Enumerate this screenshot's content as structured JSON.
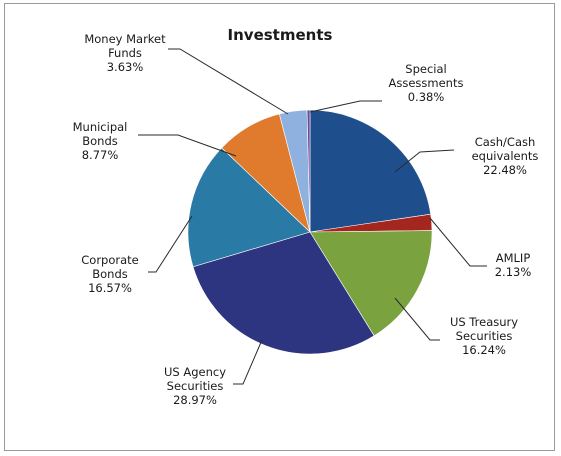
{
  "chart_data": {
    "type": "pie",
    "title": "Investments",
    "slices": [
      {
        "name_lines": [
          "Cash/Cash",
          "equivalents"
        ],
        "pct_label": "22.48%",
        "value": 22.48,
        "color": "#1f4e8c"
      },
      {
        "name_lines": [
          "AMLIP"
        ],
        "pct_label": "2.13%",
        "value": 2.13,
        "color": "#a3261f"
      },
      {
        "name_lines": [
          "US Treasury",
          "Securities"
        ],
        "pct_label": "16.24%",
        "value": 16.24,
        "color": "#7aa33f"
      },
      {
        "name_lines": [
          "US Agency",
          "Securities"
        ],
        "pct_label": "28.97%",
        "value": 28.97,
        "color": "#2e3580"
      },
      {
        "name_lines": [
          "Corporate",
          "Bonds"
        ],
        "pct_label": "16.57%",
        "value": 16.57,
        "color": "#2a7aa6"
      },
      {
        "name_lines": [
          "Municipal",
          "Bonds"
        ],
        "pct_label": "8.77%",
        "value": 8.77,
        "color": "#e07b2e"
      },
      {
        "name_lines": [
          "Money Market",
          "Funds"
        ],
        "pct_label": "3.63%",
        "value": 3.63,
        "color": "#8fb1df"
      },
      {
        "name_lines": [
          "Special",
          "Assessments"
        ],
        "pct_label": "0.38%",
        "value": 0.38,
        "color": "#6a4b96"
      }
    ],
    "start_angle_deg": 90,
    "direction": "clockwise",
    "legend": "none"
  }
}
